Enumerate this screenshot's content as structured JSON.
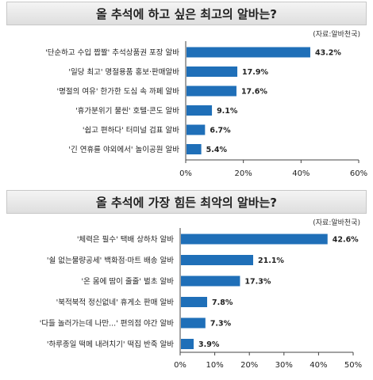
{
  "chart_data": [
    {
      "type": "bar",
      "orientation": "horizontal",
      "title": "올 추석에 하고 싶은 최고의 알바는?",
      "source": "(자료:알바천국)",
      "categories": [
        "'단순하고 수입 짭짤' 추석상품권 포장 알바",
        "'일당 최고' 명절용품 홍보·판매알바",
        "'명절의 여유' 한가한 도심 속 까페 알바",
        "'휴가분위기 물씬' 호텔·콘도 알바",
        "'쉽고 편하다' 터미널 검표 알바",
        "'긴 연휴를 야외에서' 놀이공원 알바"
      ],
      "values": [
        43.2,
        17.9,
        17.6,
        9.1,
        6.7,
        5.4
      ],
      "value_labels": [
        "43.2%",
        "17.9%",
        "17.6%",
        "9.1%",
        "6.7%",
        "5.4%"
      ],
      "xlim": [
        0,
        60
      ],
      "ticks": [
        "0%",
        "20%",
        "40%",
        "60%"
      ],
      "tick_values": [
        0,
        20,
        40,
        60
      ],
      "bar_color": "#1f6fb8",
      "grid": false
    },
    {
      "type": "bar",
      "orientation": "horizontal",
      "title": "올 추석에 가장 힘든 최악의 알바는?",
      "source": "(자료:알바천국)",
      "categories": [
        "'체력은 필수' 택배 상하차 알바",
        "'쉴 없는물량공세' 백화점·마트 배송 알바",
        "'온 몸에 땀이 줄줄' 벌초 알바",
        "'북적북적 정신없네' 휴게소 판매 알바",
        "'다들 놀러가는데 나만...' 편의점 야간 알바",
        "'하루종일 떡메 내려치기' 떡집 반죽 알바"
      ],
      "values": [
        42.6,
        21.1,
        17.3,
        7.8,
        7.3,
        3.9
      ],
      "value_labels": [
        "42.6%",
        "21.1%",
        "17.3%",
        "7.8%",
        "7.3%",
        "3.9%"
      ],
      "xlim": [
        0,
        50
      ],
      "ticks": [
        "0%",
        "10%",
        "20%",
        "30%",
        "40%",
        "50%"
      ],
      "tick_values": [
        0,
        10,
        20,
        30,
        40,
        50
      ],
      "bar_color": "#1f6fb8",
      "grid": false
    }
  ]
}
